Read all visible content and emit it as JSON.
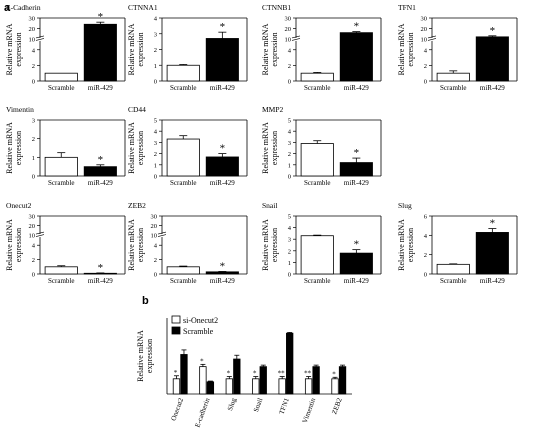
{
  "panel_labels": [
    "a",
    "b"
  ],
  "chart_data": [
    {
      "type": "bar",
      "title": "E-Cadherin",
      "ylabel": "Relative mRNA expression",
      "categories": [
        "Scramble",
        "miR-429"
      ],
      "values": [
        1,
        24
      ],
      "errors": [
        0,
        2
      ],
      "ylim": [
        0,
        30
      ],
      "broken_axis": true,
      "break": [
        5,
        10
      ],
      "yticks": [
        0,
        2,
        4,
        10,
        20,
        30
      ],
      "significance": [
        null,
        "*"
      ]
    },
    {
      "type": "bar",
      "title": "CTNNA1",
      "ylabel": "Relative mRNA expression",
      "categories": [
        "Scramble",
        "miR-429"
      ],
      "values": [
        1,
        2.7
      ],
      "errors": [
        0.05,
        0.4
      ],
      "ylim": [
        0,
        4
      ],
      "yticks": [
        0,
        1,
        2,
        3,
        4
      ],
      "significance": [
        null,
        "*"
      ]
    },
    {
      "type": "bar",
      "title": "CTNNB1",
      "ylabel": "Relative mRNA expression",
      "categories": [
        "Scramble",
        "miR-429"
      ],
      "values": [
        1,
        16
      ],
      "errors": [
        0.1,
        1
      ],
      "ylim": [
        0,
        30
      ],
      "broken_axis": true,
      "break": [
        5,
        10
      ],
      "yticks": [
        0,
        2,
        4,
        10,
        20,
        30
      ],
      "significance": [
        null,
        "*"
      ]
    },
    {
      "type": "bar",
      "title": "TFN1",
      "ylabel": "Relative mRNA expression",
      "categories": [
        "Scramble",
        "miR-429"
      ],
      "values": [
        1,
        12
      ],
      "errors": [
        0.3,
        1
      ],
      "ylim": [
        0,
        30
      ],
      "broken_axis": true,
      "break": [
        5,
        10
      ],
      "yticks": [
        0,
        2,
        4,
        10,
        20,
        30
      ],
      "significance": [
        null,
        "*"
      ]
    },
    {
      "type": "bar",
      "title": "Vimentin",
      "ylabel": "Relative mRNA expression",
      "categories": [
        "Scramble",
        "miR-429"
      ],
      "values": [
        1,
        0.5
      ],
      "errors": [
        0.25,
        0.1
      ],
      "ylim": [
        0,
        3
      ],
      "yticks": [
        0,
        1,
        2,
        3
      ],
      "significance": [
        null,
        "*"
      ]
    },
    {
      "type": "bar",
      "title": "CD44",
      "ylabel": "Relative mRNA expression",
      "categories": [
        "Scramble",
        "miR-429"
      ],
      "values": [
        3.3,
        1.7
      ],
      "errors": [
        0.3,
        0.3
      ],
      "ylim": [
        0,
        5
      ],
      "yticks": [
        0,
        1,
        2,
        3,
        4,
        5
      ],
      "significance": [
        null,
        "*"
      ]
    },
    {
      "type": "bar",
      "title": "MMP2",
      "ylabel": "Relative mRNA expression",
      "categories": [
        "Scramble",
        "miR-429"
      ],
      "values": [
        2.9,
        1.2
      ],
      "errors": [
        0.25,
        0.4
      ],
      "ylim": [
        0,
        5
      ],
      "yticks": [
        0,
        1,
        2,
        3,
        4,
        5
      ],
      "significance": [
        null,
        "*"
      ]
    },
    {
      "type": "bar",
      "title": "Onecut2",
      "ylabel": "Relative mRNA expression",
      "categories": [
        "Scramble",
        "miR-429"
      ],
      "values": [
        1,
        0.1
      ],
      "errors": [
        0.15,
        0.05
      ],
      "ylim": [
        0,
        30
      ],
      "broken_axis": true,
      "break": [
        5,
        10
      ],
      "yticks": [
        0,
        2,
        4,
        10,
        20,
        30
      ],
      "significance": [
        null,
        "*"
      ]
    },
    {
      "type": "bar",
      "title": "ZEB2",
      "ylabel": "Relative mRNA expression",
      "categories": [
        "Scramble",
        "miR-429"
      ],
      "values": [
        1,
        0.3
      ],
      "errors": [
        0.1,
        0.05
      ],
      "ylim": [
        0,
        30
      ],
      "broken_axis": true,
      "break": [
        5,
        10
      ],
      "yticks": [
        0,
        2,
        4,
        10,
        20,
        30
      ],
      "significance": [
        null,
        "*"
      ]
    },
    {
      "type": "bar",
      "title": "Snail",
      "ylabel": "Relative mRNA expression",
      "categories": [
        "Scramble",
        "miR-429"
      ],
      "values": [
        3.3,
        1.8
      ],
      "errors": [
        0.05,
        0.3
      ],
      "ylim": [
        0,
        5
      ],
      "yticks": [
        0,
        1,
        2,
        3,
        4,
        5
      ],
      "significance": [
        null,
        "*"
      ]
    },
    {
      "type": "bar",
      "title": "Slug",
      "ylabel": "Relative mRNA expression",
      "categories": [
        "Scramble",
        "miR-429"
      ],
      "values": [
        1,
        4.3
      ],
      "errors": [
        0.05,
        0.4
      ],
      "ylim": [
        0,
        6
      ],
      "yticks": [
        0,
        2,
        4,
        6
      ],
      "significance": [
        null,
        "*"
      ]
    },
    {
      "type": "bar",
      "ylabel": "Relative mRNA expression",
      "categories": [
        "Onecut2",
        "E-cadherin",
        "Slug",
        "Snail",
        "TFN1",
        "Vimentin",
        "ZEB2"
      ],
      "series": [
        {
          "name": "si-Onecut2",
          "values": [
            1,
            1.8,
            1,
            1,
            1,
            1,
            1
          ],
          "errors": [
            0.2,
            0.15,
            0.15,
            0.15,
            0.15,
            0.15,
            0.1
          ],
          "significance": [
            "*",
            "*",
            "*",
            "*",
            "**",
            "**",
            "*"
          ]
        },
        {
          "name": "Scramble",
          "values": [
            2.6,
            0.8,
            2.3,
            1.8,
            4,
            1.8,
            1.8
          ],
          "errors": [
            0.3,
            0.05,
            0.25,
            0.1,
            0.05,
            0.1,
            0.1
          ],
          "significance": [
            null,
            null,
            null,
            null,
            null,
            null,
            null
          ]
        }
      ],
      "ylim": [
        0,
        5
      ],
      "yticks": [],
      "legend": "top-left"
    }
  ]
}
